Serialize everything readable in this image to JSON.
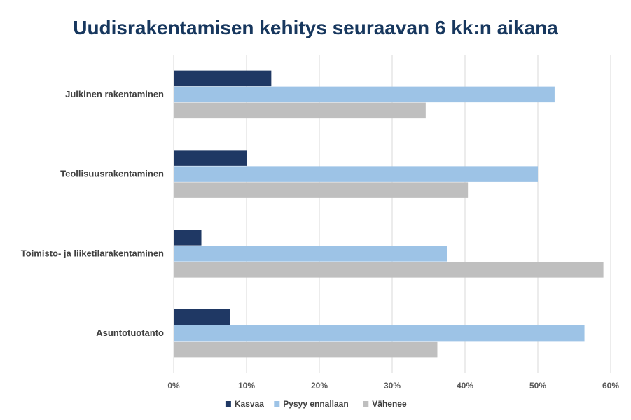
{
  "chart_data": {
    "type": "bar",
    "orientation": "horizontal",
    "title": "Uudisrakentamisen kehitys seuraavan 6 kk:n aikana",
    "categories": [
      "Julkinen rakentaminen",
      "Teollisuusrakentaminen",
      "Toimisto- ja liiketilarakentaminen",
      "Asuntotuotanto"
    ],
    "series": [
      {
        "name": "Kasvaa",
        "color": "#1f3864",
        "values": [
          13.4,
          10.0,
          3.8,
          7.7
        ]
      },
      {
        "name": "Pysyy ennallaan",
        "color": "#9dc3e6",
        "values": [
          52.3,
          50.0,
          37.5,
          56.4
        ]
      },
      {
        "name": "Vähenee",
        "color": "#bfbfbf",
        "values": [
          34.6,
          40.4,
          59.0,
          36.2
        ]
      }
    ],
    "xlim": [
      0,
      60
    ],
    "xticks": [
      "0%",
      "10%",
      "20%",
      "30%",
      "40%",
      "50%",
      "60%"
    ],
    "xlabel": "",
    "ylabel": "",
    "grid": true,
    "legend_position": "bottom"
  }
}
